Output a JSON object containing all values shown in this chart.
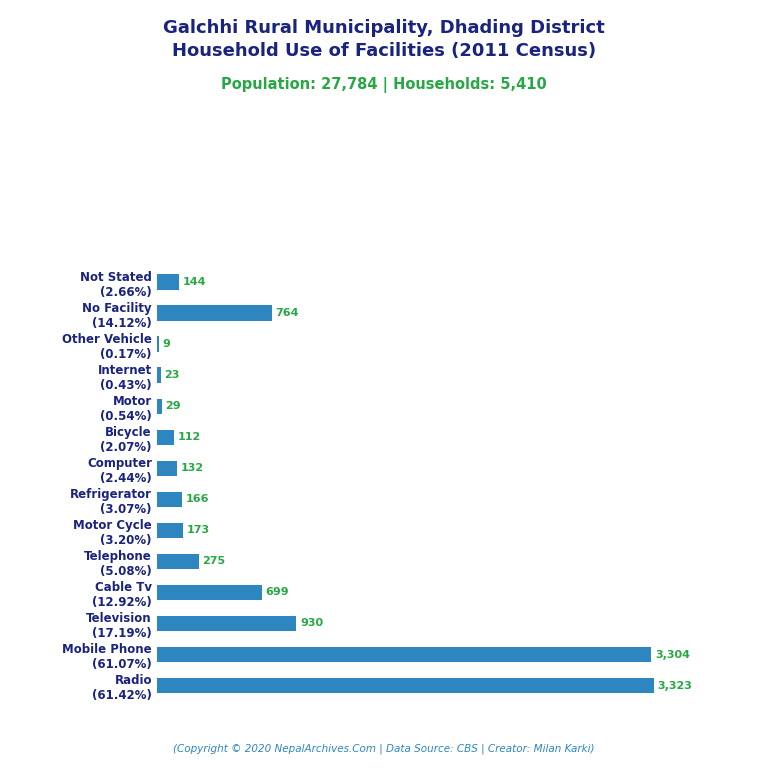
{
  "title_line1": "Galchhi Rural Municipality, Dhading District",
  "title_line2": "Household Use of Facilities (2011 Census)",
  "subtitle": "Population: 27,784 | Households: 5,410",
  "footer": "(Copyright © 2020 NepalArchives.Com | Data Source: CBS | Creator: Milan Karki)",
  "categories": [
    "Not Stated\n(2.66%)",
    "No Facility\n(14.12%)",
    "Other Vehicle\n(0.17%)",
    "Internet\n(0.43%)",
    "Motor\n(0.54%)",
    "Bicycle\n(2.07%)",
    "Computer\n(2.44%)",
    "Refrigerator\n(3.07%)",
    "Motor Cycle\n(3.20%)",
    "Telephone\n(5.08%)",
    "Cable Tv\n(12.92%)",
    "Television\n(17.19%)",
    "Mobile Phone\n(61.07%)",
    "Radio\n(61.42%)"
  ],
  "values": [
    144,
    764,
    9,
    23,
    29,
    112,
    132,
    166,
    173,
    275,
    699,
    930,
    3304,
    3323
  ],
  "bar_color": "#2e86c1",
  "value_color": "#28a745",
  "title_color": "#1a237e",
  "subtitle_color": "#28a745",
  "footer_color": "#2e86c1",
  "ylabel_fontsize": 8.5,
  "value_fontsize": 8,
  "title_fontsize": 13,
  "subtitle_fontsize": 10.5,
  "footer_fontsize": 7.5,
  "background_color": "#ffffff",
  "xlim": [
    0,
    3700
  ],
  "bar_height": 0.5
}
